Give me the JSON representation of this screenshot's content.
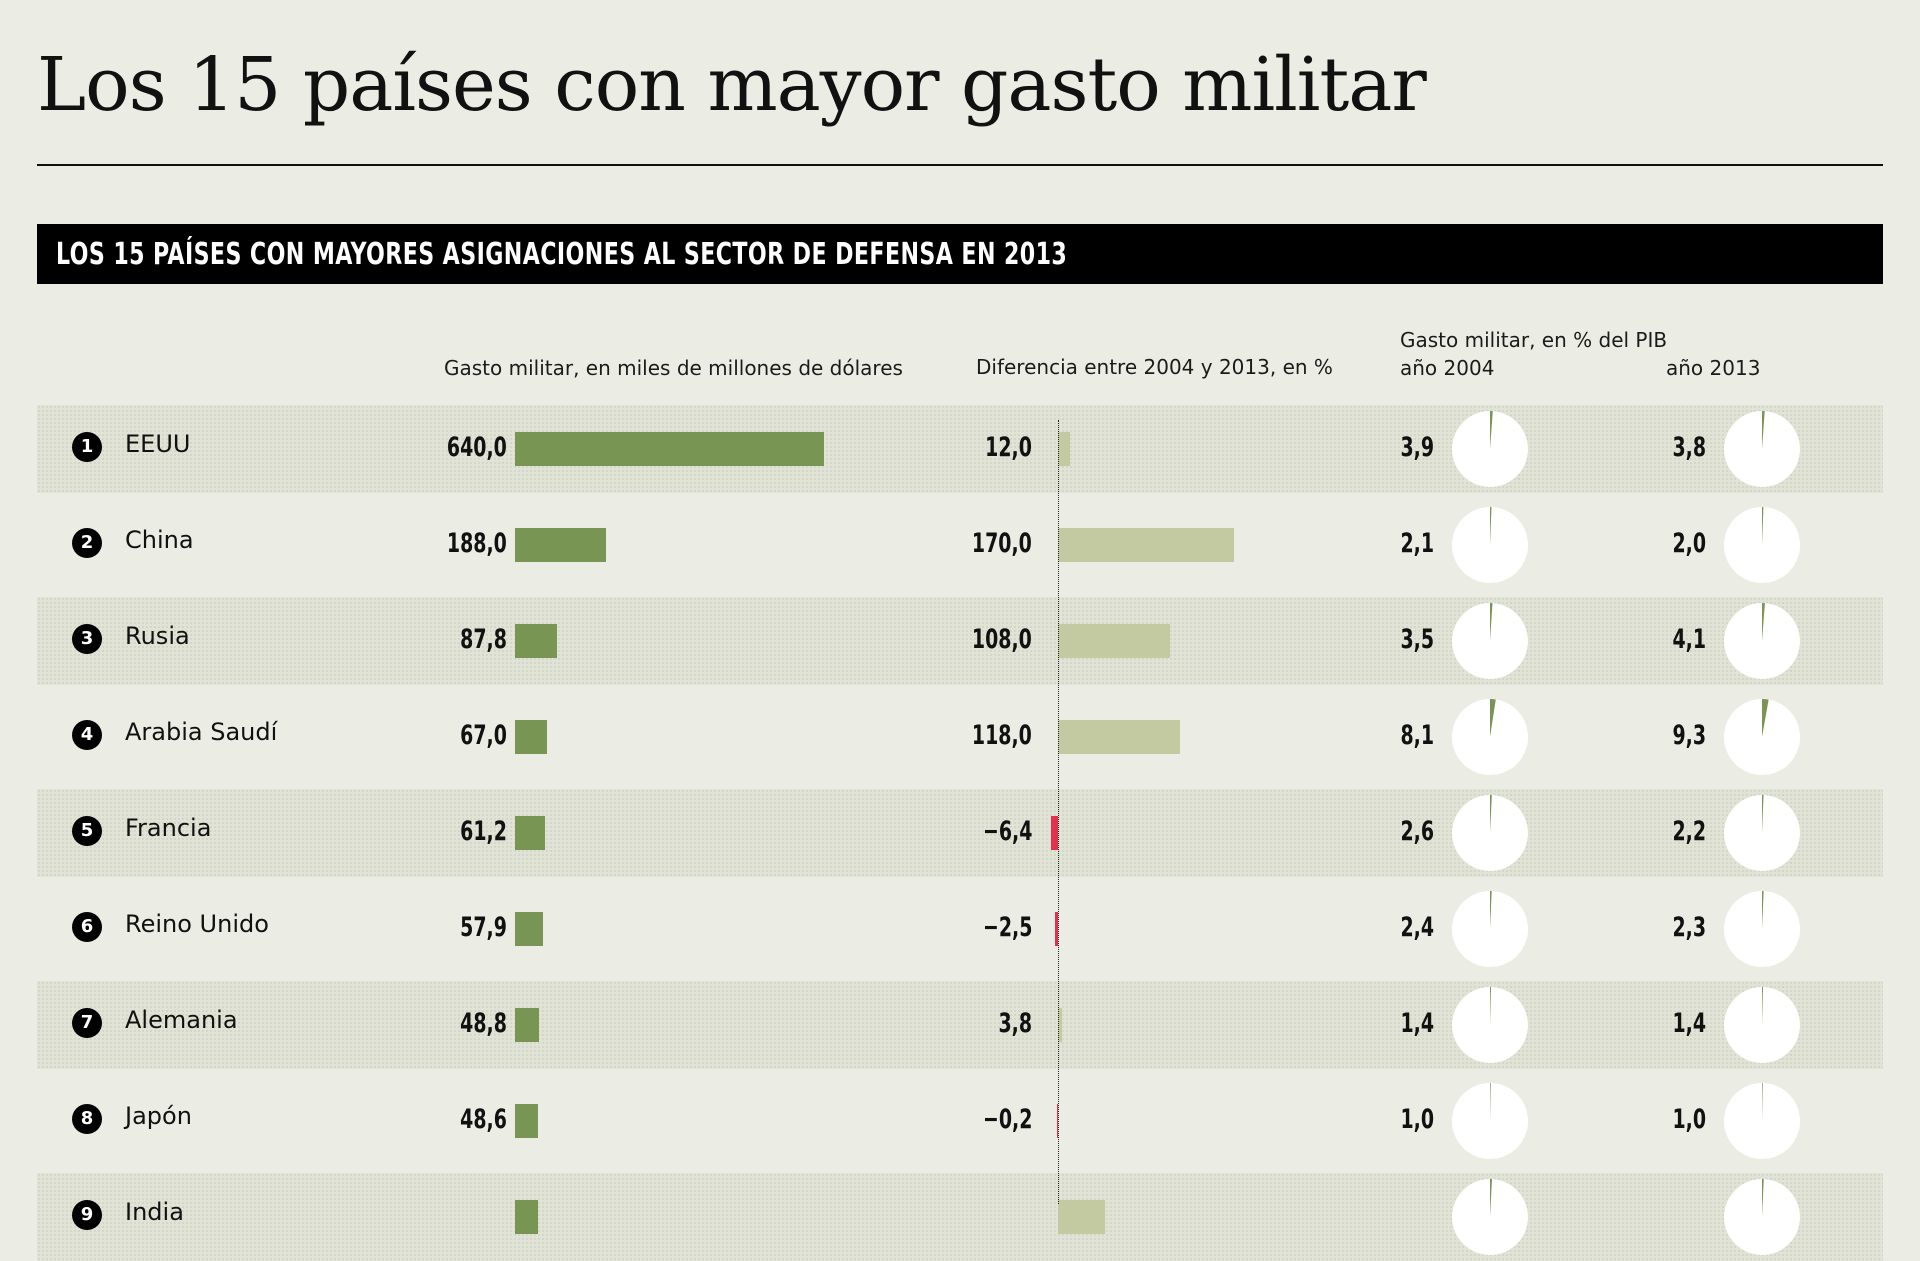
{
  "title": "Los 15 países con mayor gasto militar",
  "banner": "LOS 15 PAÍSES CON MAYORES ASIGNACIONES AL SECTOR DE DEFENSA EN 2013",
  "headers": {
    "spending": "Gasto militar, en miles de millones de dólares",
    "difference": "Diferencia entre 2004 y 2013, en %",
    "gdp": "Gasto militar, en % del PIB",
    "gdp_2004": "año 2004",
    "gdp_2013": "año 2013"
  },
  "colors": {
    "spending_bar": "#789553",
    "diff_positive": "#c3c9a0",
    "diff_negative": "#e2314f",
    "pie_fill": "#789553",
    "pie_background": "#ffffff"
  },
  "chart_data": {
    "type": "table",
    "columns": [
      "Gasto militar, en miles de millones de dólares",
      "Diferencia entre 2004 y 2013, en %",
      "año 2004",
      "año 2013"
    ],
    "rows": [
      {
        "rank": "1",
        "country": "EEUU",
        "spending": 640.0,
        "spending_label": "640,0",
        "diff": 12.0,
        "diff_label": "12,0",
        "gdp2004": 3.9,
        "gdp2004_label": "3,9",
        "gdp2013": 3.8,
        "gdp2013_label": "3,8"
      },
      {
        "rank": "2",
        "country": "China",
        "spending": 188.0,
        "spending_label": "188,0",
        "diff": 170.0,
        "diff_label": "170,0",
        "gdp2004": 2.1,
        "gdp2004_label": "2,1",
        "gdp2013": 2.0,
        "gdp2013_label": "2,0"
      },
      {
        "rank": "3",
        "country": "Rusia",
        "spending": 87.8,
        "spending_label": "87,8",
        "diff": 108.0,
        "diff_label": "108,0",
        "gdp2004": 3.5,
        "gdp2004_label": "3,5",
        "gdp2013": 4.1,
        "gdp2013_label": "4,1"
      },
      {
        "rank": "4",
        "country": "Arabia Saudí",
        "spending": 67.0,
        "spending_label": "67,0",
        "diff": 118.0,
        "diff_label": "118,0",
        "gdp2004": 8.1,
        "gdp2004_label": "8,1",
        "gdp2013": 9.3,
        "gdp2013_label": "9,3"
      },
      {
        "rank": "5",
        "country": "Francia",
        "spending": 61.2,
        "spending_label": "61,2",
        "diff": -6.4,
        "diff_label": "−6,4",
        "gdp2004": 2.6,
        "gdp2004_label": "2,6",
        "gdp2013": 2.2,
        "gdp2013_label": "2,2"
      },
      {
        "rank": "6",
        "country": "Reino Unido",
        "spending": 57.9,
        "spending_label": "57,9",
        "diff": -2.5,
        "diff_label": "−2,5",
        "gdp2004": 2.4,
        "gdp2004_label": "2,4",
        "gdp2013": 2.3,
        "gdp2013_label": "2,3"
      },
      {
        "rank": "7",
        "country": "Alemania",
        "spending": 48.8,
        "spending_label": "48,8",
        "diff": 3.8,
        "diff_label": "3,8",
        "gdp2004": 1.4,
        "gdp2004_label": "1,4",
        "gdp2013": 1.4,
        "gdp2013_label": "1,4"
      },
      {
        "rank": "8",
        "country": "Japón",
        "spending": 48.6,
        "spending_label": "48,6",
        "diff": -0.2,
        "diff_label": "−0,2",
        "gdp2004": 1.0,
        "gdp2004_label": "1,0",
        "gdp2013": 1.0,
        "gdp2013_label": "1,0"
      },
      {
        "rank": "9",
        "country": "India",
        "spending": 47.4,
        "spending_label": "",
        "diff": 45.0,
        "diff_label": "",
        "gdp2004": 2.8,
        "gdp2004_label": "",
        "gdp2013": 2.5,
        "gdp2013_label": ""
      }
    ]
  }
}
